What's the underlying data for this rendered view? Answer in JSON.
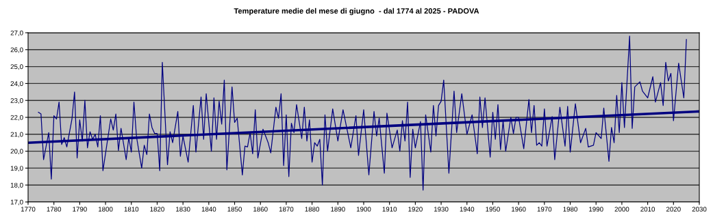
{
  "chart_data": {
    "type": "line",
    "title": "Temperature medie del mese di giugno  - dal 1774 al 2025 - PADOVA",
    "series": [
      {
        "color": "#000080",
        "x": [
          1774,
          1775,
          1776,
          1778,
          1779,
          1780,
          1781,
          1782,
          1783,
          1784,
          1785,
          1787,
          1788,
          1789,
          1790,
          1791,
          1792,
          1793,
          1794,
          1795,
          1796,
          1797,
          1798,
          1799,
          1802,
          1803,
          1804,
          1805,
          1806,
          1808,
          1809,
          1810,
          1811,
          1812,
          1814,
          1815,
          1816,
          1817,
          1818,
          1819,
          1820,
          1821,
          1822,
          1824,
          1825,
          1826,
          1828,
          1829,
          1830,
          1832,
          1834,
          1835,
          1837,
          1838,
          1839,
          1841,
          1842,
          1843,
          1844,
          1845,
          1846,
          1847,
          1849,
          1850,
          1851,
          1853,
          1854,
          1855,
          1856,
          1857,
          1858,
          1859,
          1861,
          1862,
          1863,
          1864,
          1866,
          1867,
          1868,
          1869,
          1870,
          1871,
          1872,
          1873,
          1874,
          1876,
          1877,
          1878,
          1879,
          1880,
          1881,
          1882,
          1883,
          1884,
          1885,
          1886,
          1888,
          1890,
          1892,
          1895,
          1897,
          1898,
          1900,
          1902,
          1904,
          1905,
          1906,
          1908,
          1909,
          1911,
          1913,
          1914,
          1915,
          1916,
          1917,
          1918,
          1919,
          1920,
          1922,
          1923,
          1924,
          1926,
          1927,
          1928,
          1929,
          1930,
          1931,
          1933,
          1935,
          1936,
          1938,
          1940,
          1942,
          1944,
          1945,
          1946,
          1947,
          1949,
          1950,
          1951,
          1952,
          1953,
          1954,
          1955,
          1957,
          1958,
          1959,
          1960,
          1962,
          1964,
          1965,
          1966,
          1967,
          1968,
          1969,
          1970,
          1971,
          1973,
          1974,
          1976,
          1978,
          1979,
          1980,
          1982,
          1984,
          1986,
          1987,
          1989,
          1990,
          1992,
          1993,
          1995,
          1996,
          1997,
          1998,
          1999,
          2000,
          2001,
          2003,
          2004,
          2005,
          2007,
          2008,
          2010,
          2012,
          2013,
          2015,
          2016,
          2017,
          2018,
          2019,
          2020,
          2022,
          2024,
          2025
        ],
        "values": [
          22.3,
          22.2,
          19.5,
          21.1,
          18.35,
          22.1,
          21.9,
          22.9,
          20.4,
          20.8,
          20.25,
          21.9,
          23.5,
          19.6,
          21.85,
          20.6,
          23.0,
          20.2,
          21.15,
          20.7,
          21.0,
          20.25,
          22.1,
          18.85,
          21.9,
          21.25,
          22.2,
          20.05,
          21.35,
          19.5,
          20.8,
          19.95,
          22.9,
          20.85,
          19.0,
          20.35,
          19.8,
          22.2,
          21.4,
          21.05,
          21.05,
          18.85,
          25.25,
          19.2,
          21.15,
          20.5,
          22.35,
          19.7,
          20.9,
          19.35,
          22.7,
          19.95,
          23.2,
          20.7,
          23.4,
          20.0,
          23.15,
          20.7,
          22.95,
          21.6,
          24.2,
          18.9,
          23.8,
          21.7,
          21.95,
          18.6,
          20.3,
          20.25,
          21.1,
          19.85,
          22.45,
          19.6,
          21.3,
          20.9,
          20.5,
          19.9,
          22.6,
          21.95,
          23.4,
          19.15,
          22.15,
          18.5,
          21.65,
          21.1,
          22.75,
          20.75,
          22.6,
          20.6,
          21.85,
          19.35,
          20.5,
          20.3,
          20.7,
          18.0,
          22.15,
          20.0,
          22.5,
          20.6,
          22.45,
          20.2,
          22.1,
          19.75,
          22.45,
          18.6,
          22.35,
          20.9,
          21.95,
          18.7,
          22.25,
          20.2,
          21.25,
          20.0,
          21.8,
          20.6,
          22.9,
          18.45,
          21.3,
          20.2,
          21.75,
          17.7,
          22.15,
          19.95,
          22.7,
          20.9,
          22.7,
          22.95,
          24.2,
          18.7,
          23.55,
          21.1,
          23.4,
          21.0,
          22.15,
          19.85,
          23.2,
          21.4,
          23.15,
          19.65,
          22.3,
          20.7,
          22.75,
          20.1,
          21.8,
          20.0,
          22.0,
          21.05,
          22.0,
          22.0,
          20.15,
          23.05,
          21.1,
          22.7,
          20.35,
          20.5,
          20.3,
          22.5,
          20.3,
          22.05,
          19.5,
          22.6,
          20.3,
          22.65,
          19.95,
          22.8,
          20.5,
          21.35,
          20.25,
          20.35,
          21.1,
          20.75,
          22.55,
          19.4,
          21.4,
          20.5,
          23.3,
          21.1,
          24.05,
          21.4,
          26.8,
          21.35,
          23.8,
          24.1,
          23.55,
          23.15,
          24.4,
          22.9,
          24.05,
          22.7,
          25.25,
          24.15,
          24.6,
          21.8,
          25.2,
          23.15,
          26.6
        ]
      },
      {
        "color": "#000080",
        "x": [
          1770,
          2030
        ],
        "values": [
          20.5,
          22.35
        ]
      }
    ],
    "xlim": [
      1770,
      2030
    ],
    "xticks": [
      1770,
      1780,
      1790,
      1800,
      1810,
      1820,
      1830,
      1840,
      1850,
      1860,
      1870,
      1880,
      1890,
      1900,
      1910,
      1920,
      1930,
      1940,
      1950,
      1960,
      1970,
      1980,
      1990,
      2000,
      2010,
      2020,
      2030
    ],
    "ylim": [
      17,
      27
    ],
    "yticks": [
      {
        "value": 17,
        "label": "17,0"
      },
      {
        "value": 18,
        "label": "18,0"
      },
      {
        "value": 19,
        "label": "19,0"
      },
      {
        "value": 20,
        "label": "20,0"
      },
      {
        "value": 21,
        "label": "21,0"
      },
      {
        "value": 22,
        "label": "22,0"
      },
      {
        "value": 23,
        "label": "23,0"
      },
      {
        "value": 24,
        "label": "24,0"
      },
      {
        "value": 25,
        "label": "25,0"
      },
      {
        "value": 26,
        "label": "26,0"
      },
      {
        "value": 27,
        "label": "27,0"
      }
    ],
    "grid": "y",
    "marker": "none",
    "line_style": "solid"
  }
}
